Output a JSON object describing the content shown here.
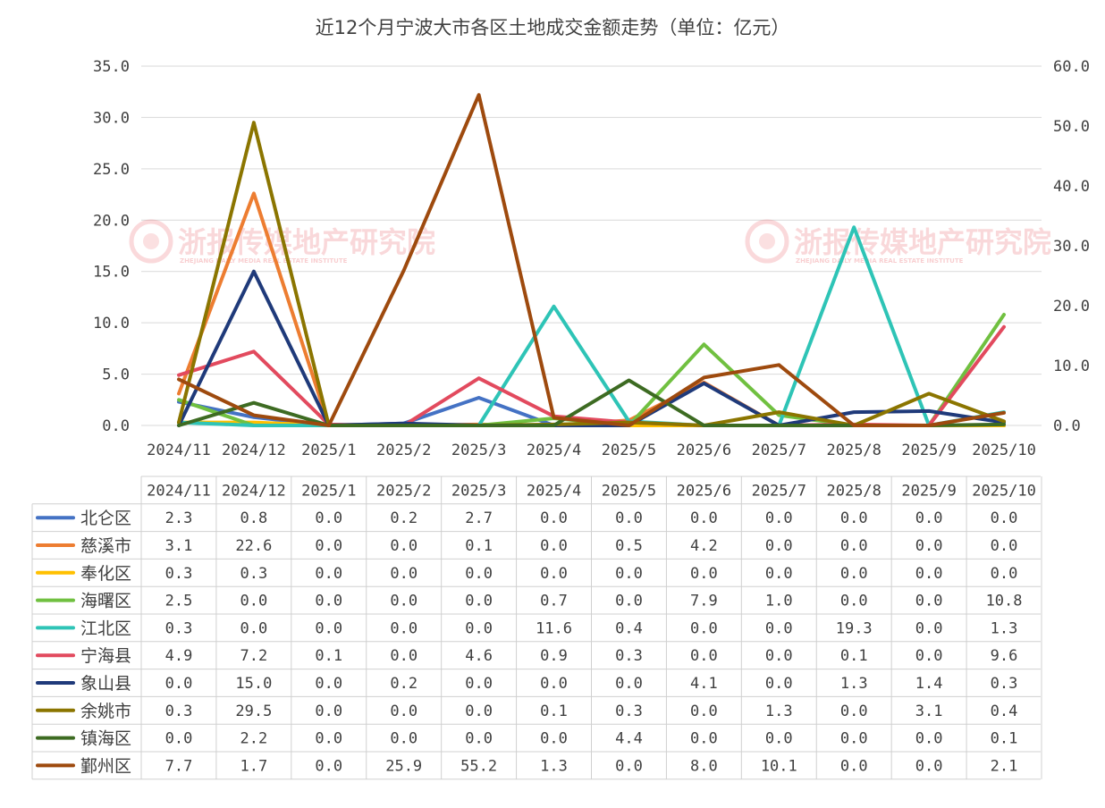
{
  "watermark": {
    "text": "浙报传媒地产研究院",
    "subtitle": "ZHEJIANG DAILY MEDIA REAL ESTATE INSTITUTE",
    "color": "#e8545a"
  },
  "chart_data": {
    "type": "line",
    "title": "近12个月宁波大市各区土地成交金额走势（单位：亿元）",
    "categories": [
      "2024/11",
      "2024/12",
      "2025/1",
      "2025/2",
      "2025/3",
      "2025/4",
      "2025/5",
      "2025/6",
      "2025/7",
      "2025/8",
      "2025/9",
      "2025/10"
    ],
    "ylim_left": [
      0,
      35
    ],
    "ylim_right": [
      0,
      60
    ],
    "yticks_left": [
      "35.0",
      "30.0",
      "25.0",
      "20.0",
      "15.0",
      "10.0",
      "5.0",
      "0.0"
    ],
    "yticks_right": [
      "60.0",
      "50.0",
      "40.0",
      "30.0",
      "20.0",
      "10.0",
      "0.0"
    ],
    "grid": true,
    "legend": "data-table-left",
    "series": [
      {
        "name": "北仑区",
        "color": "#4472c4",
        "axis": "left",
        "values": [
          2.3,
          0.8,
          0.0,
          0.2,
          2.7,
          0.0,
          0.0,
          0.0,
          0.0,
          0.0,
          0.0,
          0.0
        ],
        "labels": [
          "2.3",
          "0.8",
          "0.0",
          "0.2",
          "2.7",
          "0.0",
          "0.0",
          "0.0",
          "0.0",
          "0.0",
          "0.0",
          "0.0"
        ]
      },
      {
        "name": "慈溪市",
        "color": "#ed7d31",
        "axis": "left",
        "values": [
          3.1,
          22.6,
          0.0,
          0.0,
          0.1,
          0.0,
          0.5,
          4.2,
          0.0,
          0.0,
          0.0,
          0.0
        ],
        "labels": [
          "3.1",
          "22.6",
          "0.0",
          "0.0",
          "0.1",
          "0.0",
          "0.5",
          "4.2",
          "0.0",
          "0.0",
          "0.0",
          "0.0"
        ]
      },
      {
        "name": "奉化区",
        "color": "#ffc000",
        "axis": "left",
        "values": [
          0.3,
          0.3,
          0.0,
          0.0,
          0.0,
          0.0,
          0.0,
          0.0,
          0.0,
          0.0,
          0.0,
          0.0
        ],
        "labels": [
          "0.3",
          "0.3",
          "0.0",
          "0.0",
          "0.0",
          "0.0",
          "0.0",
          "0.0",
          "0.0",
          "0.0",
          "0.0",
          "0.0"
        ]
      },
      {
        "name": "海曙区",
        "color": "#70c040",
        "axis": "left",
        "values": [
          2.5,
          0.0,
          0.0,
          0.0,
          0.0,
          0.7,
          0.0,
          7.9,
          1.0,
          0.0,
          0.0,
          10.8
        ],
        "labels": [
          "2.5",
          "0.0",
          "0.0",
          "0.0",
          "0.0",
          "0.7",
          "0.0",
          "7.9",
          "1.0",
          "0.0",
          "0.0",
          "10.8"
        ]
      },
      {
        "name": "江北区",
        "color": "#2ec4b6",
        "axis": "left",
        "values": [
          0.3,
          0.0,
          0.0,
          0.0,
          0.0,
          11.6,
          0.4,
          0.0,
          0.0,
          19.3,
          0.0,
          1.3
        ],
        "labels": [
          "0.3",
          "0.0",
          "0.0",
          "0.0",
          "0.0",
          "11.6",
          "0.4",
          "0.0",
          "0.0",
          "19.3",
          "0.0",
          "1.3"
        ]
      },
      {
        "name": "宁海县",
        "color": "#e24a5e",
        "axis": "left",
        "values": [
          4.9,
          7.2,
          0.1,
          0.0,
          4.6,
          0.9,
          0.3,
          0.0,
          0.0,
          0.1,
          0.0,
          9.6
        ],
        "labels": [
          "4.9",
          "7.2",
          "0.1",
          "0.0",
          "4.6",
          "0.9",
          "0.3",
          "0.0",
          "0.0",
          "0.1",
          "0.0",
          "9.6"
        ]
      },
      {
        "name": "象山县",
        "color": "#1f3a7a",
        "axis": "left",
        "values": [
          0.0,
          15.0,
          0.0,
          0.2,
          0.0,
          0.0,
          0.0,
          4.1,
          0.0,
          1.3,
          1.4,
          0.3
        ],
        "labels": [
          "0.0",
          "15.0",
          "0.0",
          "0.2",
          "0.0",
          "0.0",
          "0.0",
          "4.1",
          "0.0",
          "1.3",
          "1.4",
          "0.3"
        ]
      },
      {
        "name": "余姚市",
        "color": "#8b7500",
        "axis": "left",
        "values": [
          0.3,
          29.5,
          0.0,
          0.0,
          0.0,
          0.1,
          0.3,
          0.0,
          1.3,
          0.0,
          3.1,
          0.4
        ],
        "labels": [
          "0.3",
          "29.5",
          "0.0",
          "0.0",
          "0.0",
          "0.1",
          "0.3",
          "0.0",
          "1.3",
          "0.0",
          "3.1",
          "0.4"
        ]
      },
      {
        "name": "镇海区",
        "color": "#3d6b22",
        "axis": "left",
        "values": [
          0.0,
          2.2,
          0.0,
          0.0,
          0.0,
          0.0,
          4.4,
          0.0,
          0.0,
          0.0,
          0.0,
          0.1
        ],
        "labels": [
          "0.0",
          "2.2",
          "0.0",
          "0.0",
          "0.0",
          "0.0",
          "4.4",
          "0.0",
          "0.0",
          "0.0",
          "0.0",
          "0.1"
        ]
      },
      {
        "name": "鄞州区",
        "color": "#9e4a0e",
        "axis": "right",
        "values": [
          7.7,
          1.7,
          0.0,
          25.9,
          55.2,
          1.3,
          0.0,
          8.0,
          10.1,
          0.0,
          0.0,
          2.1
        ],
        "labels": [
          "7.7",
          "1.7",
          "0.0",
          "25.9",
          "55.2",
          "1.3",
          "0.0",
          "8.0",
          "10.1",
          "0.0",
          "0.0",
          "2.1"
        ]
      }
    ]
  }
}
